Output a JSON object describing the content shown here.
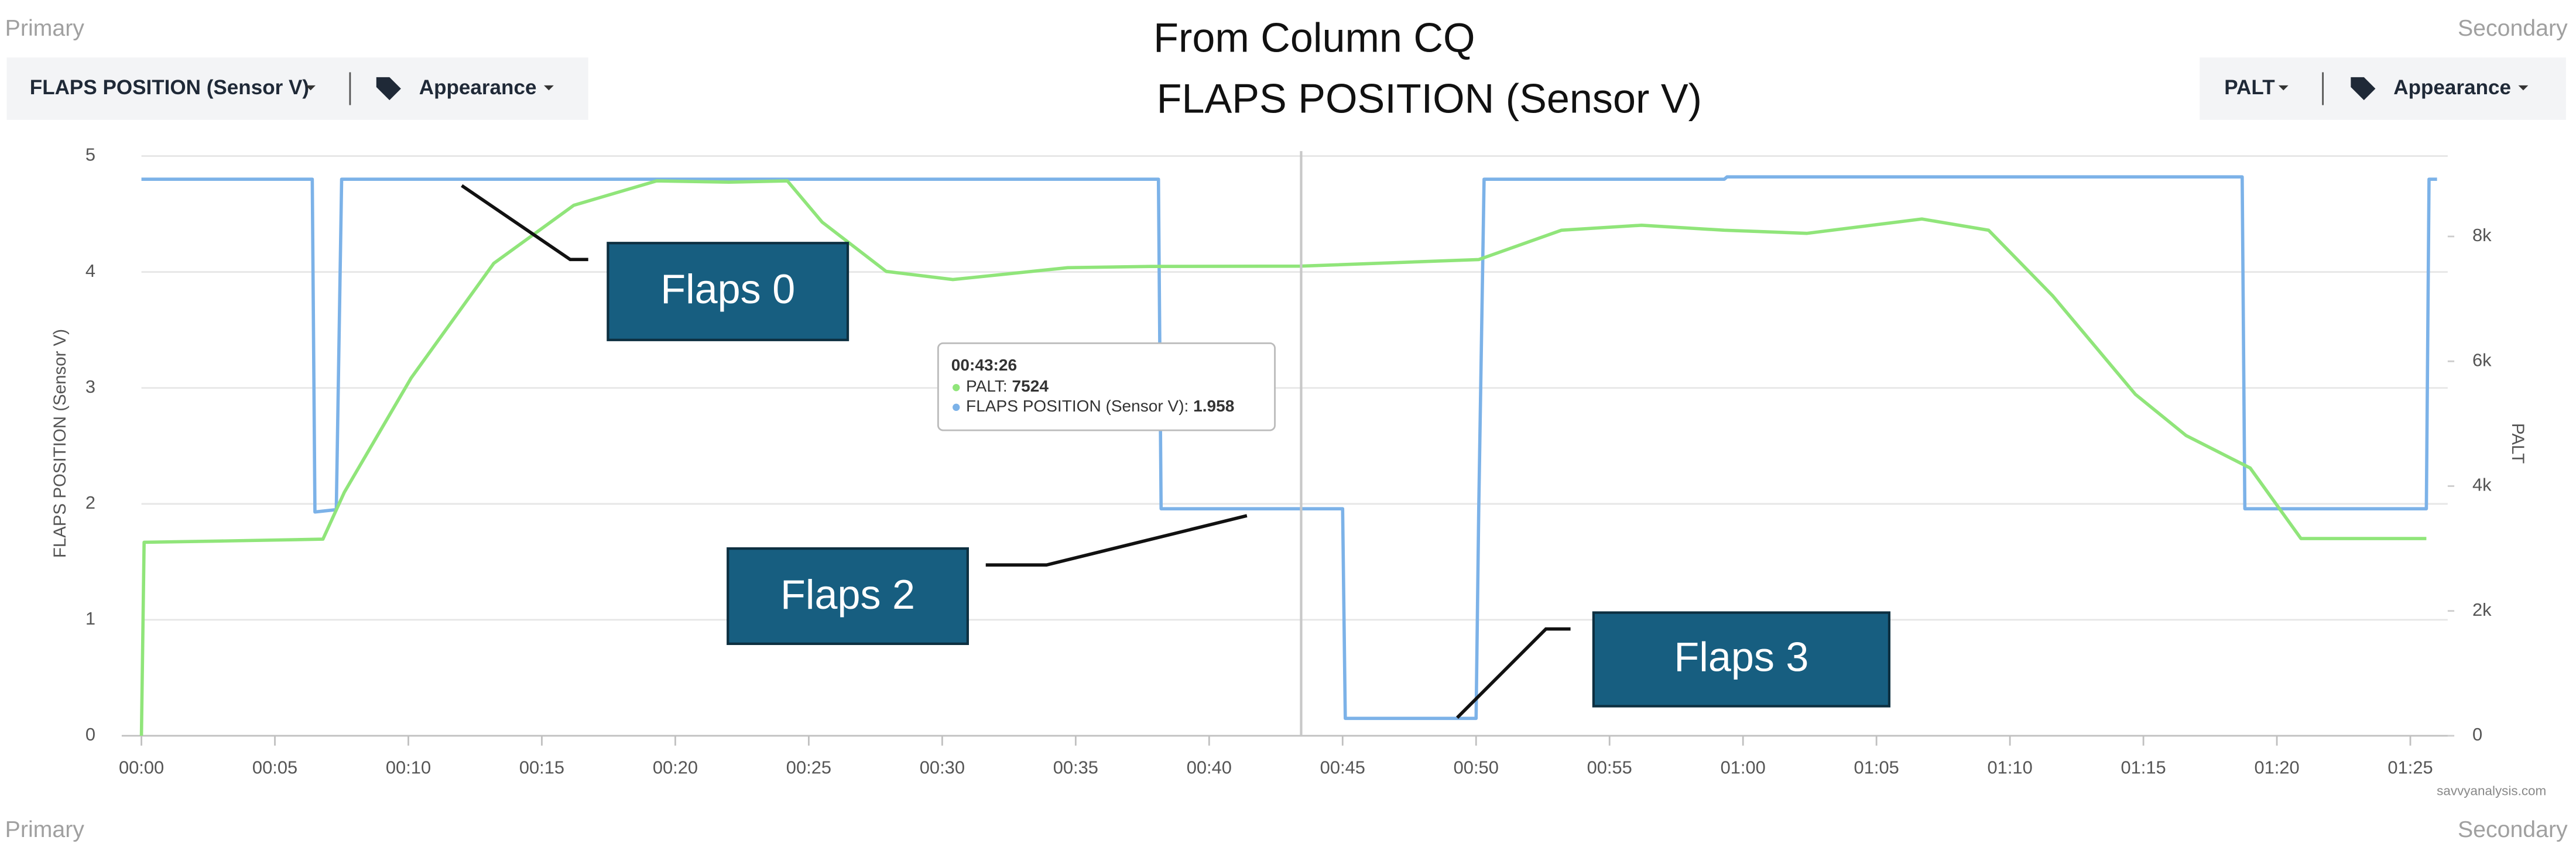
{
  "header": {
    "primary_label": "Primary",
    "secondary_label": "Secondary",
    "primary_series_button": "FLAPS POSITION (Sensor V)",
    "primary_appearance": "Appearance",
    "secondary_series_button": "PALT",
    "secondary_appearance": "Appearance"
  },
  "footer": {
    "primary_label": "Primary",
    "secondary_label": "Secondary",
    "credit": "savvyanalysis.com"
  },
  "chart_data": {
    "type": "line",
    "title": "From Column CQ",
    "subtitle": "FLAPS POSITION (Sensor V)",
    "y_label": "FLAPS POSITION (Sensor V)",
    "y2_label": "PALT",
    "xlim": [
      0,
      86.4
    ],
    "xticks": [
      {
        "value": 0,
        "label": "00:00"
      },
      {
        "value": 5,
        "label": "00:05"
      },
      {
        "value": 10,
        "label": "00:10"
      },
      {
        "value": 15,
        "label": "00:15"
      },
      {
        "value": 20,
        "label": "00:20"
      },
      {
        "value": 25,
        "label": "00:25"
      },
      {
        "value": 30,
        "label": "00:30"
      },
      {
        "value": 35,
        "label": "00:35"
      },
      {
        "value": 40,
        "label": "00:40"
      },
      {
        "value": 45,
        "label": "00:45"
      },
      {
        "value": 50,
        "label": "00:50"
      },
      {
        "value": 55,
        "label": "00:55"
      },
      {
        "value": 60,
        "label": "01:00"
      },
      {
        "value": 65,
        "label": "01:05"
      },
      {
        "value": 70,
        "label": "01:10"
      },
      {
        "value": 75,
        "label": "01:15"
      },
      {
        "value": 80,
        "label": "01:20"
      },
      {
        "value": 85,
        "label": "01:25"
      }
    ],
    "ylim": [
      0,
      5
    ],
    "yticks": [
      0,
      1,
      2,
      3,
      4,
      5
    ],
    "y2lim": [
      0,
      9289
    ],
    "y2ticks": [
      0,
      {
        "value": 2000,
        "label": "2k"
      },
      {
        "value": 4000,
        "label": "4k"
      },
      {
        "value": 6000,
        "label": "6k"
      },
      {
        "value": 8000,
        "label": "8k"
      }
    ],
    "grid": true,
    "series": [
      {
        "name": "FLAPS POSITION (Sensor V)",
        "color": "#7cb2e8",
        "x": [
          0,
          6.4,
          6.5,
          7.3,
          7.5,
          38.1,
          38.2,
          45,
          45.1,
          50,
          50.1,
          50.3,
          59.3,
          59.4,
          78.7,
          78.8,
          85.6,
          85.7,
          86
        ],
        "values": [
          4.8,
          4.8,
          1.93,
          1.95,
          4.8,
          4.8,
          1.958,
          1.958,
          0.15,
          0.15,
          1.958,
          4.8,
          4.8,
          4.82,
          4.82,
          1.958,
          1.958,
          4.8,
          4.8
        ]
      },
      {
        "name": "PALT",
        "color": "#90e57a",
        "axis": "y2",
        "x": [
          0,
          0.1,
          3,
          6.8,
          7.6,
          10.1,
          13.2,
          16.2,
          19.3,
          22,
          24.2,
          25.5,
          27.9,
          30.4,
          34.7,
          37.8,
          43.4,
          50.1,
          53.2,
          56.2,
          59.3,
          62.4,
          66.7,
          69.2,
          71.6,
          74.7,
          76.6,
          79,
          80.9,
          82.7,
          85.6
        ],
        "values": [
          0,
          3100,
          3120,
          3150,
          3900,
          5730,
          7570,
          8500,
          8890,
          8870,
          8890,
          8230,
          7440,
          7310,
          7500,
          7520,
          7524,
          7630,
          8100,
          8180,
          8100,
          8050,
          8280,
          8100,
          7050,
          5470,
          4810,
          4290,
          3160,
          3160,
          3160
        ]
      }
    ],
    "annotations": [
      "Flaps 0",
      "Flaps 2",
      "Flaps 3"
    ],
    "tooltip": {
      "time": "00:43:26",
      "items": [
        {
          "label": "PALT: ",
          "value": 7524
        },
        {
          "label": "FLAPS POSITION (Sensor V): ",
          "value": 1.958
        }
      ]
    }
  }
}
